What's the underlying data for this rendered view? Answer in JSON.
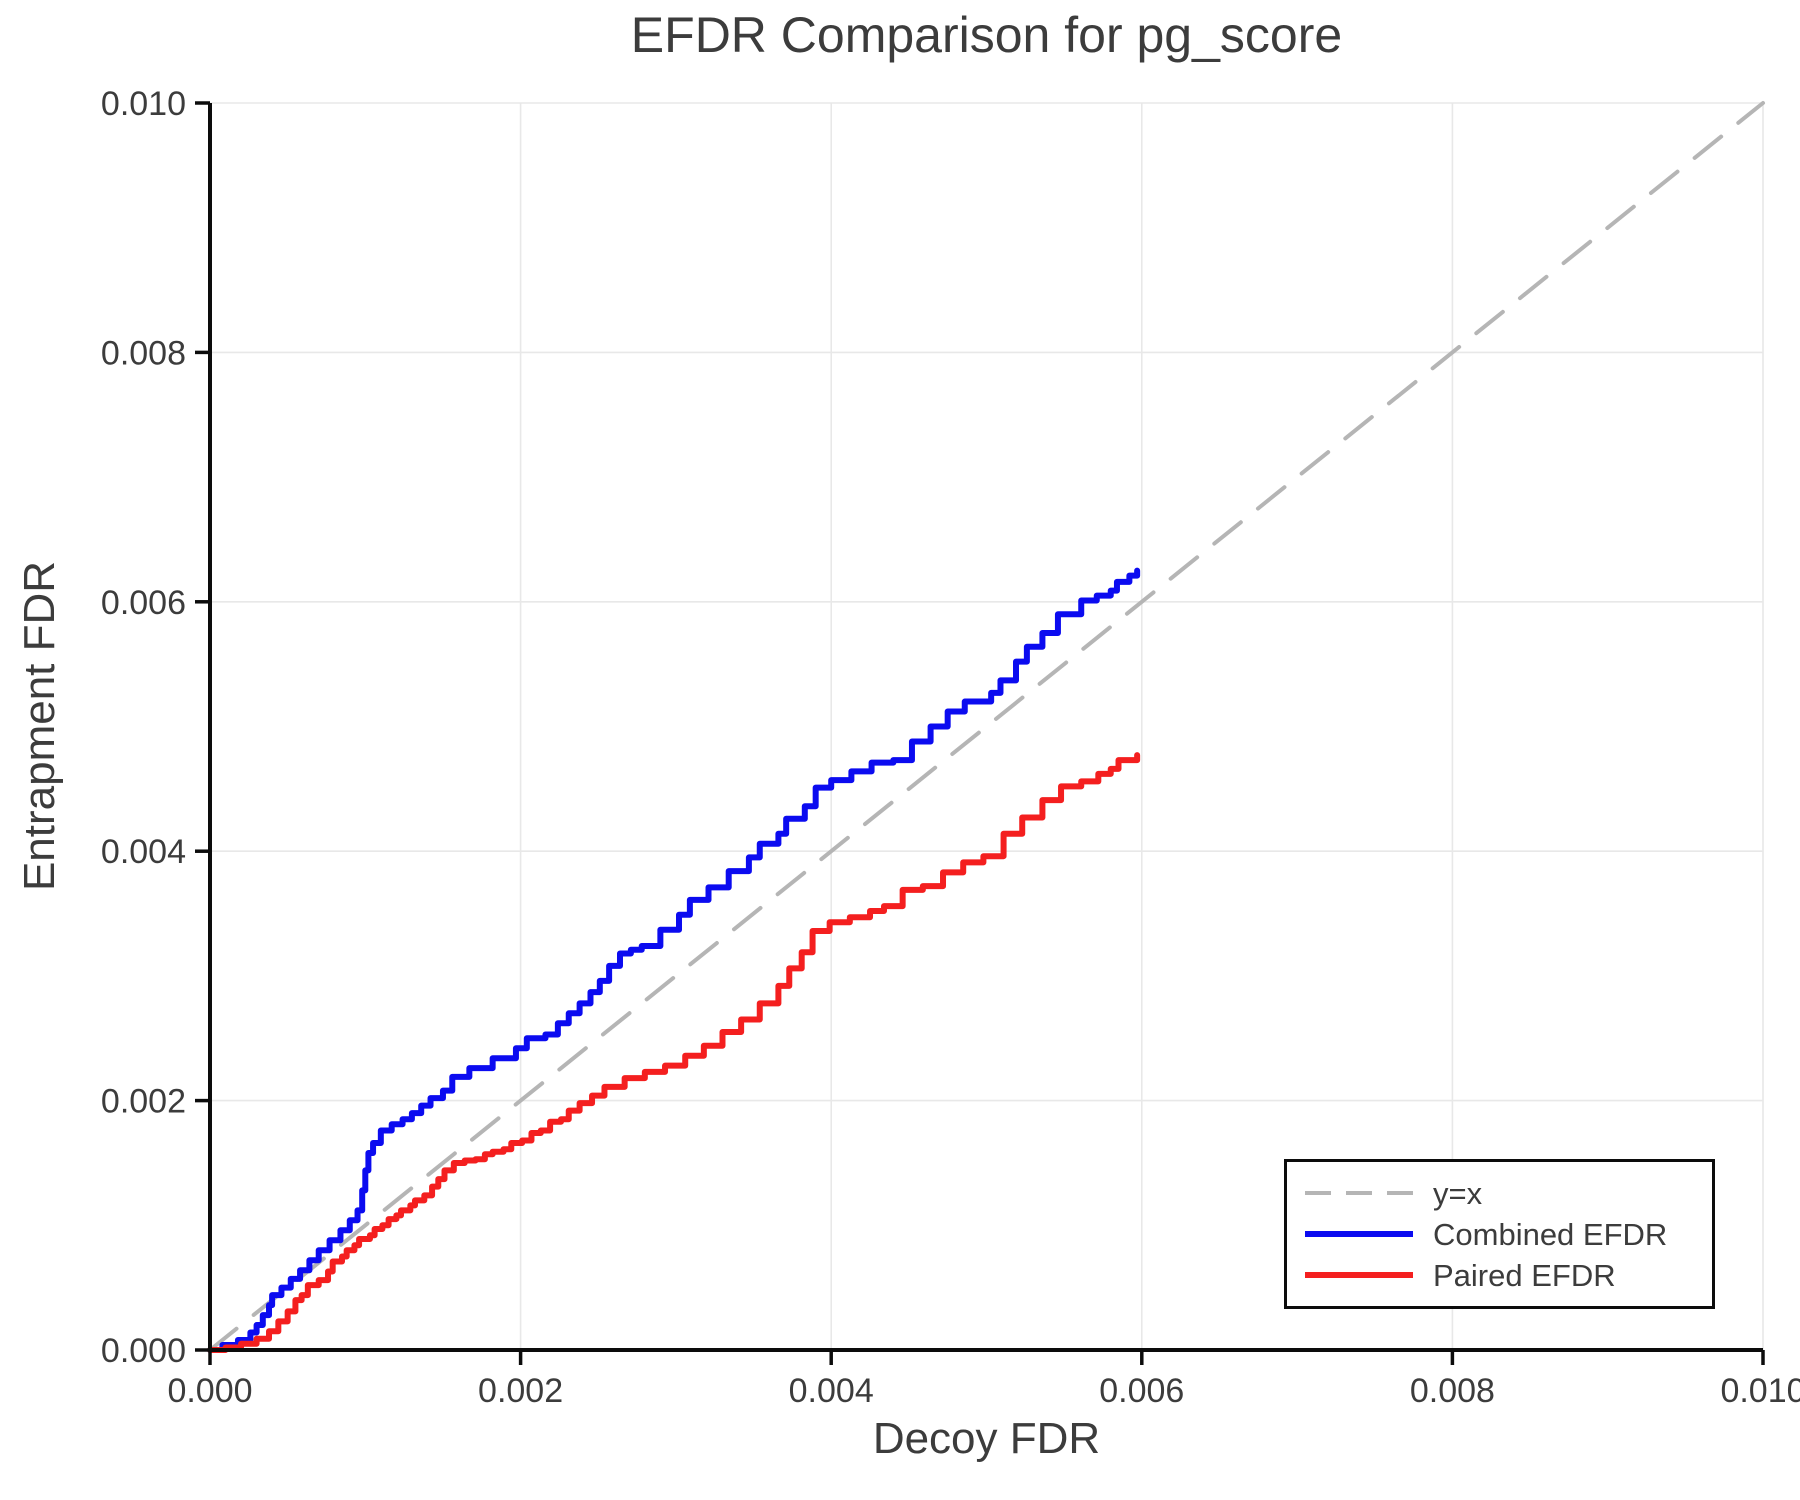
{
  "title": "EFDR Comparison for pg_score",
  "axes": {
    "xlabel": "Decoy FDR",
    "ylabel": "Entrapment FDR",
    "x_tick_labels": [
      "0.000",
      "0.002",
      "0.004",
      "0.006",
      "0.008",
      "0.010"
    ],
    "y_tick_labels": [
      "0.000",
      "0.002",
      "0.004",
      "0.006",
      "0.008",
      "0.010"
    ],
    "x_tick_values": [
      0.0,
      0.002,
      0.004,
      0.006,
      0.008,
      0.01
    ],
    "y_tick_values": [
      0.0,
      0.002,
      0.004,
      0.006,
      0.008,
      0.01
    ]
  },
  "colors": {
    "combined": "#0b0bf0",
    "paired": "#f41f1f",
    "identity": "#b5b5b5",
    "grid": "#e8e8e8",
    "spine": "#0c0c0c",
    "text": "#3c3c3c"
  },
  "legend": {
    "entries": [
      {
        "label": "y=x",
        "style": "dashed",
        "color": "#b5b5b5"
      },
      {
        "label": "Combined EFDR",
        "style": "solid",
        "color": "#0b0bf0"
      },
      {
        "label": "Paired EFDR",
        "style": "solid",
        "color": "#f41f1f"
      }
    ]
  },
  "chart_data": {
    "type": "line",
    "title": "EFDR Comparison for pg_score",
    "xlabel": "Decoy FDR",
    "ylabel": "Entrapment FDR",
    "xlim": [
      0.0,
      0.01
    ],
    "ylim": [
      0.0,
      0.01
    ],
    "grid": true,
    "legend_position": "lower right",
    "series": [
      {
        "name": "y=x",
        "color": "#b5b5b5",
        "style": "dashed",
        "drawstyle": "line",
        "points": [
          [
            0.0,
            0.0
          ],
          [
            0.01,
            0.01
          ]
        ]
      },
      {
        "name": "Combined EFDR",
        "color": "#0b0bf0",
        "style": "solid",
        "drawstyle": "steps-post",
        "points": [
          [
            0.0,
            0.0
          ],
          [
            8e-05,
            4e-05
          ],
          [
            0.00018,
            8e-05
          ],
          [
            0.00026,
            0.00014
          ],
          [
            0.0003,
            0.0002
          ],
          [
            0.00034,
            0.00028
          ],
          [
            0.00038,
            0.00036
          ],
          [
            0.0004,
            0.00044
          ],
          [
            0.00046,
            0.0005
          ],
          [
            0.00052,
            0.00057
          ],
          [
            0.00058,
            0.00064
          ],
          [
            0.00064,
            0.00072
          ],
          [
            0.0007,
            0.0008
          ],
          [
            0.00077,
            0.00088
          ],
          [
            0.00084,
            0.00096
          ],
          [
            0.0009,
            0.00104
          ],
          [
            0.00095,
            0.00112
          ],
          [
            0.00098,
            0.00128
          ],
          [
            0.001,
            0.00144
          ],
          [
            0.00102,
            0.00158
          ],
          [
            0.00105,
            0.00166
          ],
          [
            0.0011,
            0.00176
          ],
          [
            0.00117,
            0.00181
          ],
          [
            0.00124,
            0.00185
          ],
          [
            0.0013,
            0.0019
          ],
          [
            0.00136,
            0.00196
          ],
          [
            0.00142,
            0.00202
          ],
          [
            0.0015,
            0.00208
          ],
          [
            0.00156,
            0.00219
          ],
          [
            0.00167,
            0.00226
          ],
          [
            0.00182,
            0.00234
          ],
          [
            0.00197,
            0.00242
          ],
          [
            0.00204,
            0.0025
          ],
          [
            0.00216,
            0.00253
          ],
          [
            0.00224,
            0.00262
          ],
          [
            0.00231,
            0.0027
          ],
          [
            0.00238,
            0.00278
          ],
          [
            0.00245,
            0.00287
          ],
          [
            0.00251,
            0.00296
          ],
          [
            0.00257,
            0.00308
          ],
          [
            0.00264,
            0.00318
          ],
          [
            0.00271,
            0.00321
          ],
          [
            0.00278,
            0.00324
          ],
          [
            0.0029,
            0.00337
          ],
          [
            0.00302,
            0.00349
          ],
          [
            0.00309,
            0.00361
          ],
          [
            0.00321,
            0.00371
          ],
          [
            0.00334,
            0.00384
          ],
          [
            0.00347,
            0.00395
          ],
          [
            0.00354,
            0.00406
          ],
          [
            0.00366,
            0.00414
          ],
          [
            0.00371,
            0.00426
          ],
          [
            0.00383,
            0.00436
          ],
          [
            0.0039,
            0.00451
          ],
          [
            0.004,
            0.00457
          ],
          [
            0.00413,
            0.00464
          ],
          [
            0.00426,
            0.00471
          ],
          [
            0.0044,
            0.00473
          ],
          [
            0.00452,
            0.00488
          ],
          [
            0.00464,
            0.005
          ],
          [
            0.00475,
            0.00512
          ],
          [
            0.00486,
            0.0052
          ],
          [
            0.00503,
            0.00527
          ],
          [
            0.00509,
            0.00537
          ],
          [
            0.00519,
            0.00552
          ],
          [
            0.00526,
            0.00564
          ],
          [
            0.00536,
            0.00575
          ],
          [
            0.00546,
            0.0059
          ],
          [
            0.00561,
            0.00601
          ],
          [
            0.00571,
            0.00605
          ],
          [
            0.0058,
            0.00609
          ],
          [
            0.00584,
            0.00616
          ],
          [
            0.00592,
            0.00621
          ],
          [
            0.00597,
            0.00625
          ]
        ]
      },
      {
        "name": "Paired EFDR",
        "color": "#f41f1f",
        "style": "solid",
        "drawstyle": "steps-post",
        "points": [
          [
            0.0,
            0.0
          ],
          [
            0.0001,
            2e-05
          ],
          [
            0.0002,
            5e-05
          ],
          [
            0.0003,
            9e-05
          ],
          [
            0.00038,
            0.00015
          ],
          [
            0.00044,
            0.00023
          ],
          [
            0.0005,
            0.00031
          ],
          [
            0.00055,
            0.0004
          ],
          [
            0.00059,
            0.00044
          ],
          [
            0.00063,
            0.00052
          ],
          [
            0.0007,
            0.00056
          ],
          [
            0.00076,
            0.00063
          ],
          [
            0.00079,
            0.00071
          ],
          [
            0.00085,
            0.00075
          ],
          [
            0.00088,
            0.0008
          ],
          [
            0.00093,
            0.00084
          ],
          [
            0.00096,
            0.00089
          ],
          [
            0.00103,
            0.00092
          ],
          [
            0.00106,
            0.00097
          ],
          [
            0.00111,
            0.001
          ],
          [
            0.00115,
            0.00105
          ],
          [
            0.0012,
            0.00108
          ],
          [
            0.00123,
            0.00112
          ],
          [
            0.00129,
            0.00116
          ],
          [
            0.00132,
            0.0012
          ],
          [
            0.00138,
            0.00124
          ],
          [
            0.00143,
            0.00131
          ],
          [
            0.00147,
            0.00137
          ],
          [
            0.00151,
            0.00144
          ],
          [
            0.00157,
            0.0015
          ],
          [
            0.00164,
            0.00152
          ],
          [
            0.00171,
            0.00153
          ],
          [
            0.00177,
            0.00157
          ],
          [
            0.00182,
            0.00159
          ],
          [
            0.00189,
            0.00161
          ],
          [
            0.00194,
            0.00166
          ],
          [
            0.00201,
            0.00168
          ],
          [
            0.00207,
            0.00174
          ],
          [
            0.00213,
            0.00176
          ],
          [
            0.00219,
            0.00183
          ],
          [
            0.00226,
            0.00185
          ],
          [
            0.00231,
            0.00192
          ],
          [
            0.00238,
            0.00198
          ],
          [
            0.00246,
            0.00204
          ],
          [
            0.00254,
            0.00211
          ],
          [
            0.00267,
            0.00218
          ],
          [
            0.0028,
            0.00223
          ],
          [
            0.00293,
            0.00228
          ],
          [
            0.00306,
            0.00236
          ],
          [
            0.00318,
            0.00244
          ],
          [
            0.0033,
            0.00255
          ],
          [
            0.00342,
            0.00265
          ],
          [
            0.00354,
            0.00278
          ],
          [
            0.00366,
            0.00292
          ],
          [
            0.00373,
            0.00306
          ],
          [
            0.00381,
            0.00319
          ],
          [
            0.00388,
            0.00336
          ],
          [
            0.00399,
            0.00343
          ],
          [
            0.00412,
            0.00347
          ],
          [
            0.00425,
            0.00352
          ],
          [
            0.00434,
            0.00356
          ],
          [
            0.00446,
            0.00369
          ],
          [
            0.00459,
            0.00372
          ],
          [
            0.00472,
            0.00383
          ],
          [
            0.00485,
            0.00391
          ],
          [
            0.00498,
            0.00396
          ],
          [
            0.00511,
            0.00414
          ],
          [
            0.00523,
            0.00427
          ],
          [
            0.00536,
            0.00441
          ],
          [
            0.00548,
            0.00452
          ],
          [
            0.00561,
            0.00456
          ],
          [
            0.00572,
            0.00462
          ],
          [
            0.0058,
            0.00466
          ],
          [
            0.00585,
            0.00473
          ],
          [
            0.00597,
            0.00477
          ]
        ]
      }
    ]
  }
}
